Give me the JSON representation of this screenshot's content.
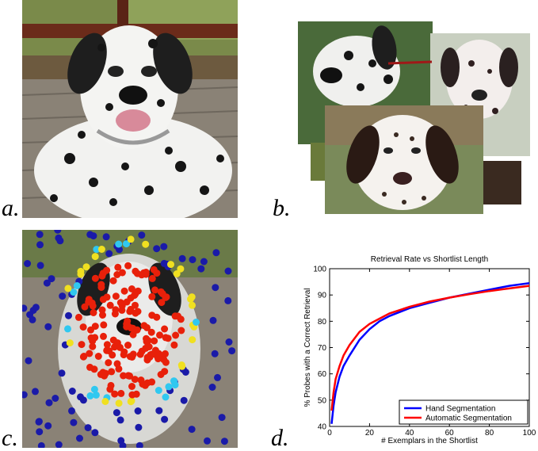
{
  "panels": [
    {
      "id": "a",
      "label": "a."
    },
    {
      "id": "b",
      "label": "b."
    },
    {
      "id": "c",
      "label": "c."
    },
    {
      "id": "d",
      "label": "d."
    }
  ],
  "colors": {
    "hand": "#0000ff",
    "auto": "#ff0000",
    "dot_blue": "#1a1aa8",
    "dot_red": "#e8200a",
    "dot_cyan": "#30c8f0",
    "dot_yellow": "#f0e020"
  },
  "chart_data": {
    "type": "line",
    "title": "Retrieval Rate vs Shortlist Length",
    "xlabel": "# Exemplars in the Shortlist",
    "ylabel": "% Probes with a Correct Retrieval",
    "xlim": [
      0,
      100
    ],
    "ylim": [
      40,
      100
    ],
    "xticks": [
      0,
      20,
      40,
      60,
      80,
      100
    ],
    "yticks": [
      40,
      50,
      60,
      70,
      80,
      90,
      100
    ],
    "grid": false,
    "legend_position": "bottom-right",
    "x": [
      1,
      2,
      3,
      5,
      7,
      10,
      15,
      20,
      25,
      30,
      40,
      50,
      60,
      70,
      80,
      90,
      100
    ],
    "series": [
      {
        "name": "Hand Segmentation",
        "color": "#0000ff",
        "values": [
          41,
          48,
          53,
          59,
          63,
          67,
          73,
          77,
          80,
          82,
          85,
          87,
          89,
          90.5,
          92,
          93.5,
          94.5
        ]
      },
      {
        "name": "Automatic Segmentation",
        "color": "#ff0000",
        "values": [
          46,
          53,
          58,
          63,
          67,
          71,
          76,
          79,
          81,
          83,
          85.5,
          87.5,
          89,
          90.3,
          91.5,
          92.5,
          93.5
        ]
      }
    ]
  }
}
